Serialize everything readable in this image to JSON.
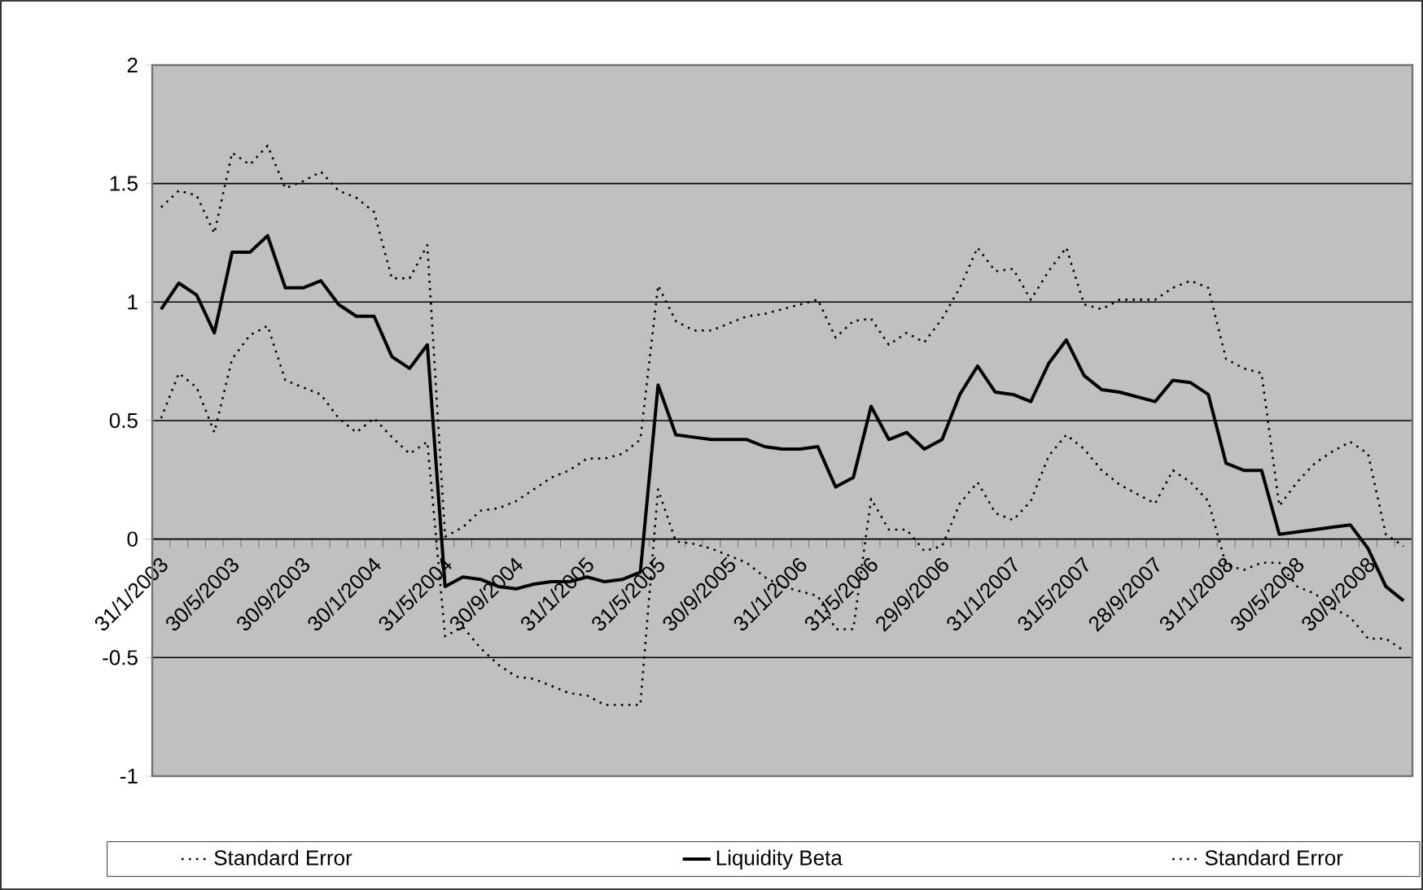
{
  "chart_data": {
    "type": "line",
    "categories": [
      "31/1/2003",
      null,
      null,
      null,
      "30/5/2003",
      null,
      null,
      null,
      "30/9/2003",
      null,
      null,
      null,
      "30/1/2004",
      null,
      null,
      null,
      "31/5/2004",
      null,
      null,
      null,
      "30/9/2004",
      null,
      null,
      null,
      "31/1/2005",
      null,
      null,
      null,
      "31/5/2005",
      null,
      null,
      null,
      "30/9/2005",
      null,
      null,
      null,
      "31/1/2006",
      null,
      null,
      null,
      "31/5/2006",
      null,
      null,
      null,
      "29/9/2006",
      null,
      null,
      null,
      "31/1/2007",
      null,
      null,
      null,
      "31/5/2007",
      null,
      null,
      null,
      "28/9/2007",
      null,
      null,
      null,
      "31/1/2008",
      null,
      null,
      null,
      "30/5/2008",
      null,
      null,
      null,
      "30/9/2008",
      null,
      null
    ],
    "series": [
      {
        "name": "Standard Error",
        "color": "#000000",
        "line_style": "dotted",
        "values": [
          1.4,
          1.47,
          1.45,
          1.29,
          1.63,
          1.58,
          1.66,
          1.48,
          1.51,
          1.55,
          1.47,
          1.44,
          1.38,
          1.1,
          1.1,
          1.24,
          0.01,
          0.05,
          0.12,
          0.13,
          0.16,
          0.21,
          0.26,
          0.29,
          0.34,
          0.34,
          0.36,
          0.42,
          1.07,
          0.92,
          0.88,
          0.88,
          0.91,
          0.94,
          0.95,
          0.97,
          0.99,
          1.01,
          0.85,
          0.92,
          0.93,
          0.82,
          0.87,
          0.83,
          0.93,
          1.06,
          1.23,
          1.13,
          1.14,
          1.01,
          1.13,
          1.23,
          0.99,
          0.97,
          1.01,
          1.01,
          1.01,
          1.06,
          1.09,
          1.06,
          0.76,
          0.72,
          0.7,
          0.14,
          0.24,
          0.32,
          0.37,
          0.41,
          0.36,
          0.02,
          -0.03
        ]
      },
      {
        "name": "Liquidity Beta",
        "color": "#000000",
        "line_style": "solid",
        "values": [
          0.97,
          1.08,
          1.03,
          0.87,
          1.21,
          1.21,
          1.28,
          1.06,
          1.06,
          1.09,
          0.99,
          0.94,
          0.94,
          0.77,
          0.72,
          0.82,
          -0.2,
          -0.16,
          -0.17,
          -0.2,
          -0.21,
          -0.19,
          -0.18,
          -0.18,
          -0.16,
          -0.18,
          -0.17,
          -0.14,
          0.65,
          0.44,
          0.43,
          0.42,
          0.42,
          0.42,
          0.39,
          0.38,
          0.38,
          0.39,
          0.22,
          0.26,
          0.56,
          0.42,
          0.45,
          0.38,
          0.42,
          0.61,
          0.73,
          0.62,
          0.61,
          0.58,
          0.74,
          0.84,
          0.69,
          0.63,
          0.62,
          0.6,
          0.58,
          0.67,
          0.66,
          0.61,
          0.32,
          0.29,
          0.29,
          0.02,
          0.03,
          0.04,
          0.05,
          0.06,
          -0.04,
          -0.2,
          -0.26
        ]
      },
      {
        "name": "Standard Error",
        "color": "#000000",
        "line_style": "dotted",
        "values": [
          0.51,
          0.7,
          0.64,
          0.45,
          0.76,
          0.86,
          0.9,
          0.67,
          0.64,
          0.61,
          0.51,
          0.45,
          0.51,
          0.43,
          0.36,
          0.41,
          -0.41,
          -0.37,
          -0.46,
          -0.53,
          -0.58,
          -0.59,
          -0.62,
          -0.65,
          -0.66,
          -0.7,
          -0.7,
          -0.7,
          0.21,
          -0.01,
          -0.02,
          -0.04,
          -0.07,
          -0.1,
          -0.16,
          -0.2,
          -0.22,
          -0.24,
          -0.38,
          -0.38,
          0.17,
          0.04,
          0.04,
          -0.05,
          -0.03,
          0.15,
          0.24,
          0.11,
          0.08,
          0.16,
          0.35,
          0.44,
          0.38,
          0.29,
          0.23,
          0.19,
          0.15,
          0.29,
          0.24,
          0.16,
          -0.11,
          -0.13,
          -0.1,
          -0.1,
          -0.2,
          -0.23,
          -0.29,
          -0.33,
          -0.42,
          -0.42,
          -0.47
        ]
      }
    ],
    "ylim": [
      -1,
      2
    ],
    "yticks": [
      -1,
      -0.5,
      0,
      0.5,
      1,
      1.5,
      2
    ],
    "grid": "y",
    "legend": "bottom"
  }
}
